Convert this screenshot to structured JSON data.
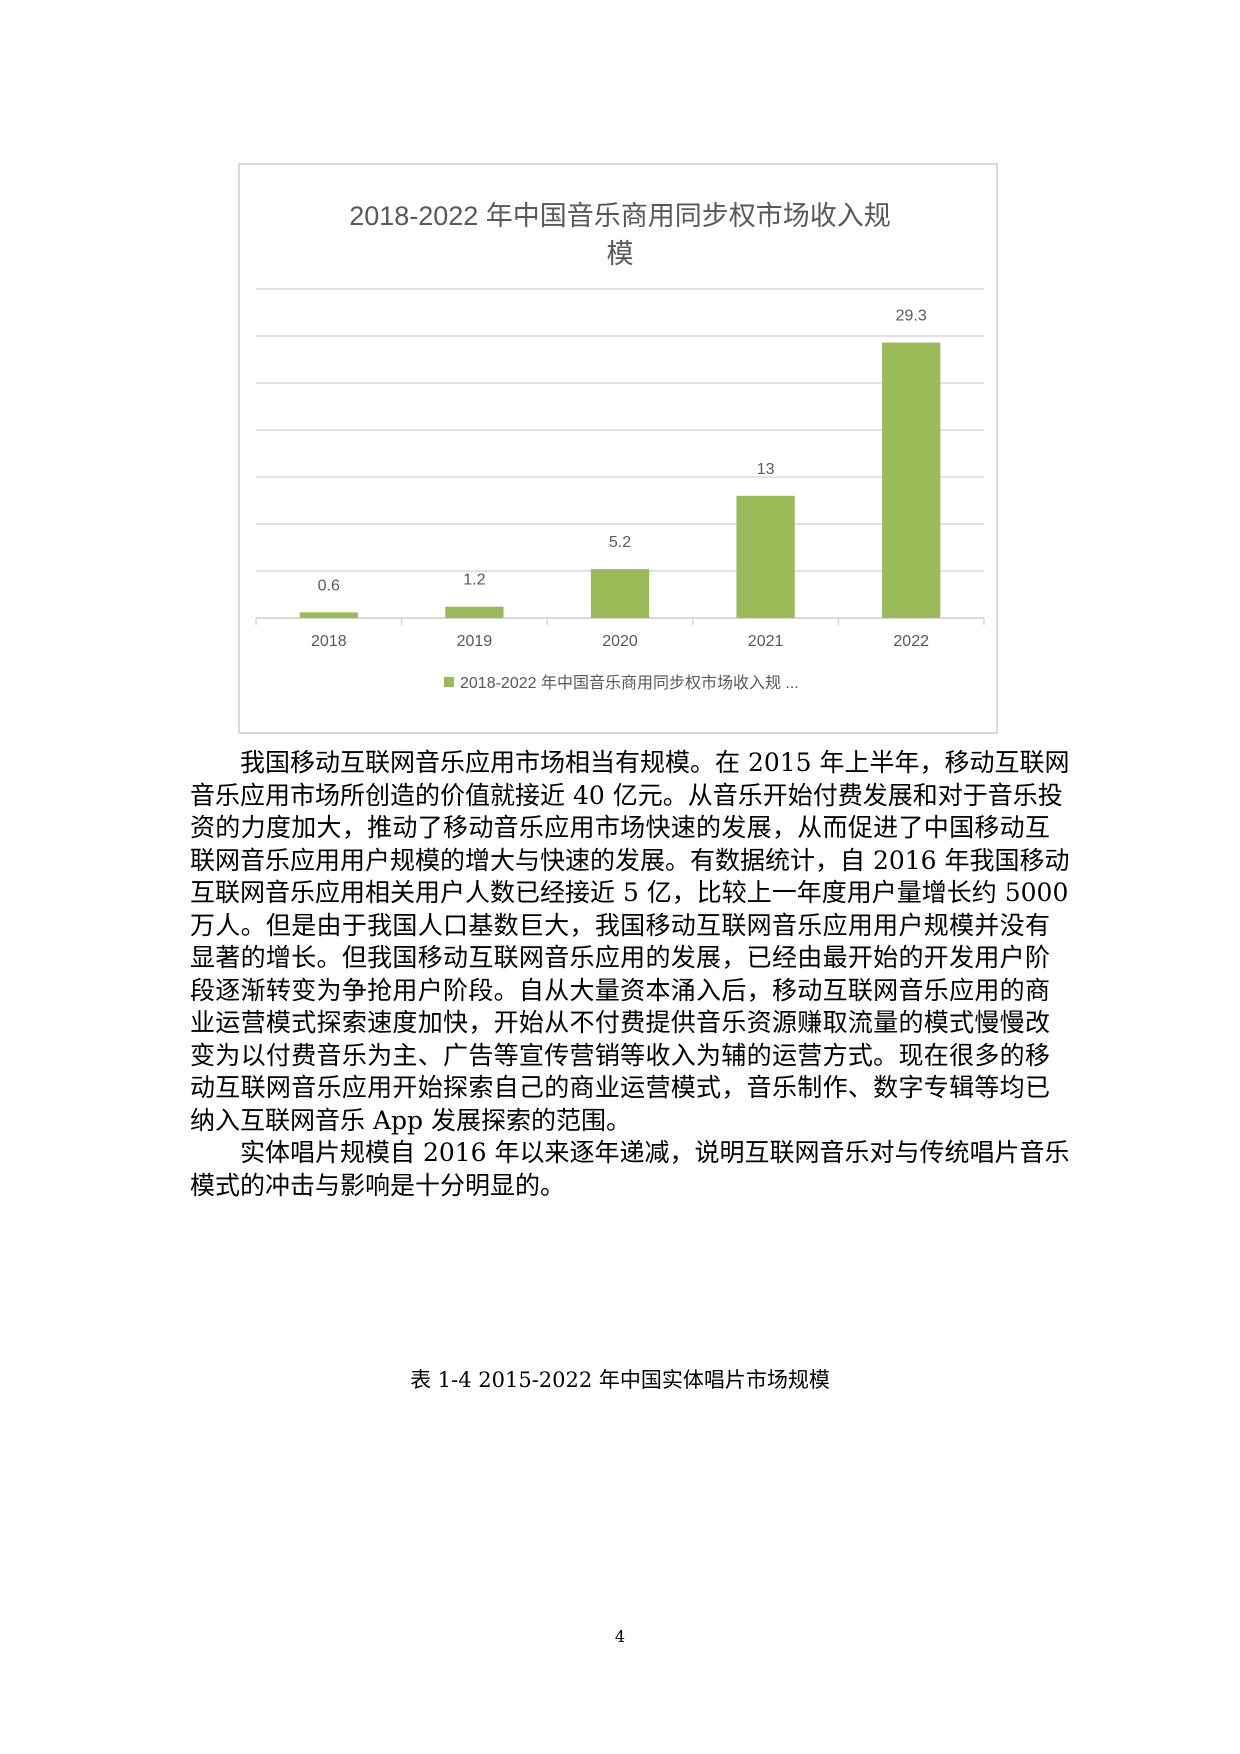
{
  "chart_data": {
    "type": "bar",
    "title": "2018-2022 年中国音乐商用同步权市场收入规模",
    "title_lines": [
      "2018-2022 年中国音乐商用同步权市场收入规",
      "模"
    ],
    "categories": [
      "2018",
      "2019",
      "2020",
      "2021",
      "2022"
    ],
    "series": [
      {
        "name": "2018-2022 年中国音乐商用同步权市场收入规 ...",
        "values": [
          0.6,
          1.2,
          5.2,
          13,
          29.3
        ]
      }
    ],
    "data_labels": [
      "0.6",
      "1.2",
      "5.2",
      "13",
      "29.3"
    ],
    "ylim": [
      0,
      35
    ],
    "y_gridline_step": 5,
    "y_tick_labels_shown": false,
    "grid": true,
    "legend": "bottom",
    "bar_color": "#9bbb59",
    "grid_color": "#d9d9d9",
    "text_color": "#595959"
  },
  "body": {
    "paragraphs": [
      {
        "lines": [
          "我国移动互联网音乐应用市场相当有规模。在 2015 年上半年，移动互联网",
          "音乐应用市场所创造的价值就接近 40 亿元。从音乐开始付费发展和对于音乐投",
          "资的力度加大，推动了移动音乐应用市场快速的发展，从而促进了中国移动互",
          "联网音乐应用用户规模的增大与快速的发展。有数据统计，自 2016 年我国移动",
          "互联网音乐应用相关用户人数已经接近 5 亿，比较上一年度用户量增长约 5000",
          "万人。但是由于我国人口基数巨大，我国移动互联网音乐应用用户规模并没有",
          "显著的增长。但我国移动互联网音乐应用的发展，已经由最开始的开发用户阶",
          "段逐渐转变为争抢用户阶段。自从大量资本涌入后，移动互联网音乐应用的商",
          "业运营模式探索速度加快，开始从不付费提供音乐资源赚取流量的模式慢慢改",
          "变为以付费音乐为主、广告等宣传营销等收入为辅的运营方式。现在很多的移",
          "动互联网音乐应用开始探索自己的商业运营模式，音乐制作、数字专辑等均已",
          "纳入互联网音乐 App 发展探索的范围。"
        ]
      },
      {
        "lines": [
          "实体唱片规模自 2016 年以来逐年递减，说明互联网音乐对与传统唱片音乐",
          "模式的冲击与影响是十分明显的。"
        ]
      }
    ]
  },
  "caption": "表 1-4 2015-2022 年中国实体唱片市场规模",
  "page_number": "4"
}
